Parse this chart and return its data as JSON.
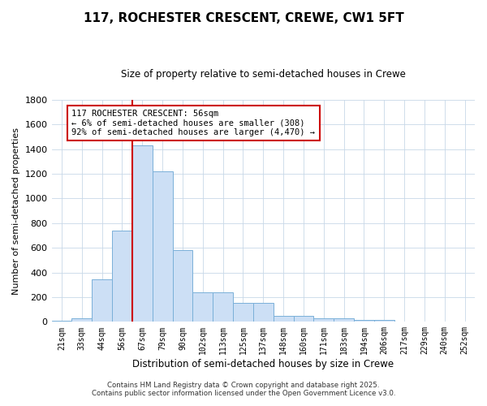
{
  "title": "117, ROCHESTER CRESCENT, CREWE, CW1 5FT",
  "subtitle": "Size of property relative to semi-detached houses in Crewe",
  "xlabel": "Distribution of semi-detached houses by size in Crewe",
  "ylabel": "Number of semi-detached properties",
  "bar_labels": [
    "21sqm",
    "33sqm",
    "44sqm",
    "56sqm",
    "67sqm",
    "79sqm",
    "90sqm",
    "102sqm",
    "113sqm",
    "125sqm",
    "137sqm",
    "148sqm",
    "160sqm",
    "171sqm",
    "183sqm",
    "194sqm",
    "206sqm",
    "217sqm",
    "229sqm",
    "240sqm",
    "252sqm"
  ],
  "bar_values": [
    10,
    30,
    345,
    740,
    1430,
    1220,
    580,
    240,
    240,
    155,
    155,
    50,
    50,
    30,
    30,
    15,
    15,
    5,
    5,
    0,
    5
  ],
  "bar_color": "#ccdff5",
  "bar_edge_color": "#7ab0d8",
  "vline_x_idx": 3,
  "vline_color": "#cc0000",
  "annotation_text": "117 ROCHESTER CRESCENT: 56sqm\n← 6% of semi-detached houses are smaller (308)\n92% of semi-detached houses are larger (4,470) →",
  "annotation_box_edge_color": "#cc0000",
  "ylim": [
    0,
    1800
  ],
  "yticks": [
    0,
    200,
    400,
    600,
    800,
    1000,
    1200,
    1400,
    1600,
    1800
  ],
  "bg_color": "#ffffff",
  "grid_color": "#c8d8e8",
  "footer_line1": "Contains HM Land Registry data © Crown copyright and database right 2025.",
  "footer_line2": "Contains public sector information licensed under the Open Government Licence v3.0."
}
